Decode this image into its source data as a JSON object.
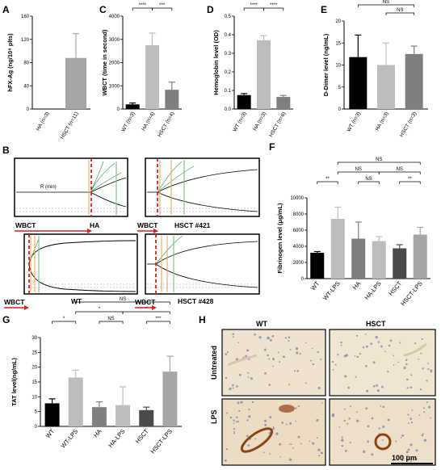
{
  "colors": {
    "black": "#000000",
    "light_gray": "#bdbdbd",
    "mid_gray": "#7f7f7f",
    "dark_gray": "#4a4a4a",
    "red": "#e41a1c",
    "tissue": "#efe3cf",
    "stain": "#8b4513"
  },
  "chart_data": [
    {
      "panel": "A",
      "type": "bar",
      "ylabel": "hFX-Ag (ng/10⁸ plts)",
      "ylim": [
        0,
        160
      ],
      "yticks": [
        0,
        40,
        80,
        120,
        160
      ],
      "categories": [
        "HA (n=3)",
        "HSCT (n=11)"
      ],
      "values": [
        0,
        88
      ],
      "errors": [
        0,
        42
      ],
      "bar_colors": [
        "#bdbdbd",
        "#a6a6a6"
      ],
      "significance": []
    },
    {
      "panel": "C",
      "type": "bar",
      "ylabel": "WBCT (time in second)",
      "ylim": [
        0,
        4000
      ],
      "yticks": [
        0,
        1000,
        2000,
        3000,
        4000
      ],
      "categories": [
        "WT (n=3)",
        "HA (n=4)",
        "HSCT (n=4)"
      ],
      "values": [
        200,
        2750,
        830
      ],
      "errors": [
        60,
        520,
        330
      ],
      "bar_colors": [
        "#000000",
        "#bdbdbd",
        "#7f7f7f"
      ],
      "significance": [
        {
          "from": 0,
          "to": 1,
          "label": "****",
          "level": 0
        },
        {
          "from": 1,
          "to": 2,
          "label": "***",
          "level": 0
        }
      ]
    },
    {
      "panel": "D",
      "type": "bar",
      "ylabel": "Hemoglobin level (OD)",
      "ylim": [
        0,
        0.5
      ],
      "yticks": [
        0.0,
        0.1,
        0.2,
        0.3,
        0.4,
        0.5
      ],
      "categories": [
        "WT (n=3)",
        "HA (n=3)",
        "HSCT (n=6)"
      ],
      "values": [
        0.075,
        0.37,
        0.065
      ],
      "errors": [
        0.008,
        0.025,
        0.008
      ],
      "bar_colors": [
        "#000000",
        "#bdbdbd",
        "#7f7f7f"
      ],
      "significance": [
        {
          "from": 0,
          "to": 1,
          "label": "****",
          "level": 0
        },
        {
          "from": 1,
          "to": 2,
          "label": "****",
          "level": 0
        }
      ]
    },
    {
      "panel": "E",
      "type": "bar",
      "ylabel": "D-Dimer level (ng/mL)",
      "ylim": [
        0,
        20
      ],
      "yticks": [
        0,
        5,
        10,
        15,
        20
      ],
      "categories": [
        "WT (n=3)",
        "HA (n=3)",
        "HSCT (n=3)"
      ],
      "values": [
        11.8,
        10.0,
        12.5
      ],
      "errors": [
        5.0,
        5.0,
        1.8
      ],
      "bar_colors": [
        "#000000",
        "#bdbdbd",
        "#7f7f7f"
      ],
      "significance": [
        {
          "from": 0,
          "to": 2,
          "label": "NS",
          "level": 1
        },
        {
          "from": 1,
          "to": 2,
          "label": "NS",
          "level": 0
        }
      ]
    },
    {
      "panel": "F",
      "type": "bar",
      "ylabel": "Fibrinogen level (μg/mL)",
      "ylim": [
        0,
        10000
      ],
      "yticks": [
        0,
        2000,
        4000,
        6000,
        8000,
        10000
      ],
      "categories": [
        "WT",
        "WT-LPS",
        "HA",
        "HA-LPS",
        "HSCT",
        "HSCT-LPS"
      ],
      "values": [
        3200,
        7400,
        4950,
        4650,
        3750,
        5450
      ],
      "errors": [
        150,
        1450,
        2050,
        550,
        450,
        900
      ],
      "bar_colors": [
        "#000000",
        "#bdbdbd",
        "#7f7f7f",
        "#bdbdbd",
        "#4a4a4a",
        "#a6a6a6"
      ],
      "significance": [
        {
          "from": 0,
          "to": 1,
          "label": "**",
          "level": 0
        },
        {
          "from": 2,
          "to": 3,
          "label": "NS",
          "level": 0
        },
        {
          "from": 4,
          "to": 5,
          "label": "**",
          "level": 0
        },
        {
          "from": 1,
          "to": 3,
          "label": "NS",
          "level": 1
        },
        {
          "from": 3,
          "to": 5,
          "label": "NS",
          "level": 1
        },
        {
          "from": 1,
          "to": 5,
          "label": "NS",
          "level": 2
        }
      ]
    },
    {
      "panel": "G",
      "type": "bar",
      "ylabel": "TAT level(ng/mL)",
      "ylim": [
        0,
        30
      ],
      "yticks": [
        0,
        5,
        10,
        15,
        20,
        25,
        30
      ],
      "categories": [
        "WT",
        "WT-LPS",
        "HA",
        "HA-LPS",
        "HSCT",
        "HSCT-LPS"
      ],
      "values": [
        7.8,
        16.5,
        6.5,
        7.2,
        5.5,
        18.5
      ],
      "errors": [
        1.5,
        2.5,
        1.8,
        6.2,
        1.0,
        5.2
      ],
      "bar_colors": [
        "#000000",
        "#bdbdbd",
        "#7f7f7f",
        "#bdbdbd",
        "#4a4a4a",
        "#a6a6a6"
      ],
      "significance": [
        {
          "from": 0,
          "to": 1,
          "label": "*",
          "level": 0
        },
        {
          "from": 2,
          "to": 3,
          "label": "NS",
          "level": 0
        },
        {
          "from": 4,
          "to": 5,
          "label": "***",
          "level": 0
        },
        {
          "from": 1,
          "to": 3,
          "label": "*",
          "level": 1
        },
        {
          "from": 3,
          "to": 5,
          "label": "**",
          "level": 1
        },
        {
          "from": 1,
          "to": 5,
          "label": "NS",
          "level": 2
        }
      ]
    }
  ],
  "panel_b": {
    "letter": "B",
    "traces": [
      {
        "label": "HA",
        "annotation": "R (min)"
      },
      {
        "label": "HSCT #421"
      },
      {
        "label": "WT"
      },
      {
        "label": "HSCT #428"
      }
    ],
    "wbct_label": "WBCT"
  },
  "panel_h": {
    "letter": "H",
    "col_labels": [
      "WT",
      "HSCT"
    ],
    "row_labels": [
      "Untreated",
      "LPS"
    ],
    "scale_bar": "100 μm"
  }
}
